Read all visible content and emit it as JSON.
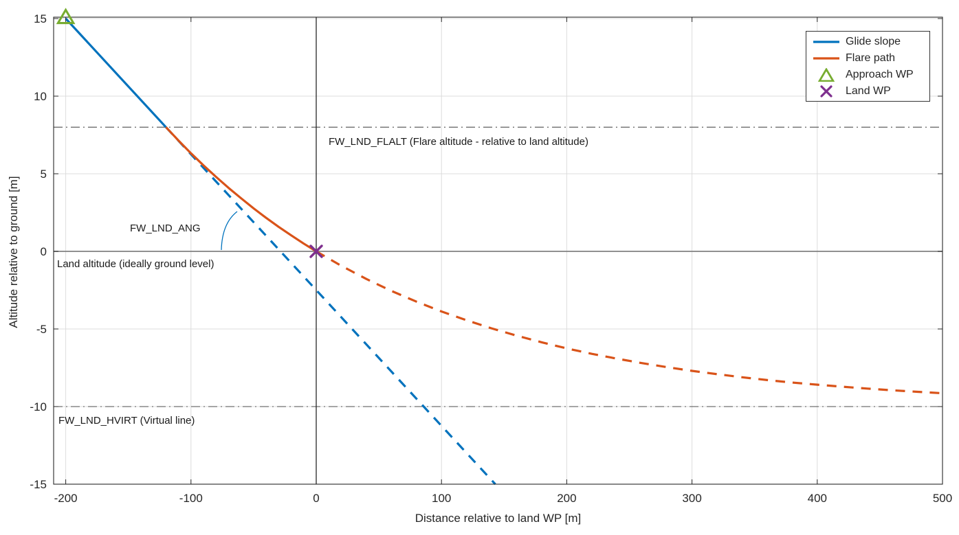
{
  "chart_data": {
    "type": "line",
    "title": "",
    "xlabel": "Distance relative to land WP [m]",
    "ylabel": "Altitude relative to ground [m]",
    "xlim": [
      -209,
      500
    ],
    "ylim": [
      -15.1,
      15.1
    ],
    "xticks": [
      -200,
      -100,
      0,
      100,
      200,
      300,
      400,
      500
    ],
    "yticks": [
      -15,
      -10,
      -5,
      0,
      5,
      10,
      15
    ],
    "grid": true,
    "legend_position": "northeast",
    "series": [
      {
        "name": "Glide slope",
        "color": "#0072BD",
        "style": "solid",
        "points": [
          [
            -200,
            15
          ],
          [
            -120,
            8
          ]
        ]
      },
      {
        "name": "Glide slope virtual extension",
        "color": "#0072BD",
        "style": "dashed",
        "points": [
          [
            -120,
            8
          ],
          [
            143,
            -15
          ]
        ]
      },
      {
        "name": "Flare path",
        "color": "#D95319",
        "style": "solid",
        "points": [
          [
            -120,
            8
          ],
          [
            -110,
            7.14
          ],
          [
            -100,
            6.32
          ],
          [
            -90,
            5.54
          ],
          [
            -80,
            4.8
          ],
          [
            -70,
            4.09
          ],
          [
            -60,
            3.42
          ],
          [
            -50,
            2.77
          ],
          [
            -40,
            2.16
          ],
          [
            -30,
            1.58
          ],
          [
            -20,
            1.03
          ],
          [
            -10,
            0.5
          ],
          [
            0,
            0
          ]
        ]
      },
      {
        "name": "Flare path extension",
        "color": "#D95319",
        "style": "dashed",
        "points": [
          [
            0,
            0
          ],
          [
            20,
            -0.93
          ],
          [
            40,
            -1.78
          ],
          [
            60,
            -2.55
          ],
          [
            80,
            -3.24
          ],
          [
            100,
            -3.87
          ],
          [
            120,
            -4.44
          ],
          [
            140,
            -4.96
          ],
          [
            160,
            -5.43
          ],
          [
            180,
            -5.86
          ],
          [
            200,
            -6.25
          ],
          [
            220,
            -6.6
          ],
          [
            240,
            -6.91
          ],
          [
            260,
            -7.2
          ],
          [
            280,
            -7.46
          ],
          [
            300,
            -7.7
          ],
          [
            320,
            -7.91
          ],
          [
            340,
            -8.11
          ],
          [
            360,
            -8.29
          ],
          [
            380,
            -8.45
          ],
          [
            400,
            -8.59
          ],
          [
            420,
            -8.72
          ],
          [
            440,
            -8.84
          ],
          [
            460,
            -8.95
          ],
          [
            480,
            -9.05
          ],
          [
            500,
            -9.14
          ]
        ]
      }
    ],
    "waypoints": [
      {
        "name": "Approach WP",
        "marker": "triangle",
        "color": "#77AC30",
        "x": -200,
        "y": 15
      },
      {
        "name": "Land WP",
        "marker": "x",
        "color": "#7E2F8E",
        "x": 0,
        "y": 0
      }
    ],
    "reference_lines": [
      {
        "id": "flare-altitude",
        "axis": "y",
        "value": 8,
        "style": "dashdot",
        "color": "#4d4d4d",
        "label": "FW_LND_FLALT (Flare altitude - relative to land altitude)"
      },
      {
        "id": "ground",
        "axis": "y",
        "value": 0,
        "style": "solid",
        "color": "#808080",
        "label": "Land altitude (ideally ground level)"
      },
      {
        "id": "virtual-line",
        "axis": "y",
        "value": -10,
        "style": "dashdot",
        "color": "#4d4d4d",
        "label": "FW_LND_HVIRT (Virtual line)"
      },
      {
        "id": "land-wp-vertical",
        "axis": "x",
        "value": 0,
        "style": "solid",
        "color": "#262626",
        "label": ""
      }
    ],
    "annotations": [
      {
        "id": "glide-angle",
        "label": "FW_LND_ANG"
      }
    ],
    "legend": [
      {
        "label": "Glide slope",
        "swatch": "line",
        "color": "#0072BD"
      },
      {
        "label": "Flare path",
        "swatch": "line",
        "color": "#D95319"
      },
      {
        "label": "Approach WP",
        "swatch": "triangle",
        "color": "#77AC30"
      },
      {
        "label": "Land WP",
        "swatch": "x",
        "color": "#7E2F8E"
      }
    ]
  }
}
